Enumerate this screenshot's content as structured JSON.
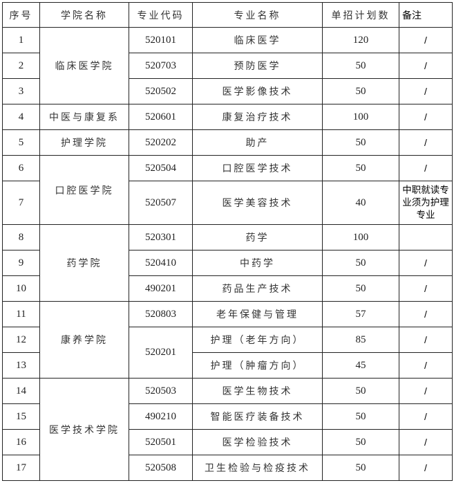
{
  "headers": {
    "seq": "序号",
    "college": "学院名称",
    "code": "专业代码",
    "major": "专业名称",
    "plan": "单招计划数",
    "remark": "备注"
  },
  "colleges": [
    "临床医学院",
    "中医与康复系",
    "护理学院",
    "口腔医学院",
    "药学院",
    "康养学院",
    "医学技术学院"
  ],
  "rows": [
    {
      "seq": "1",
      "code": "520101",
      "major": "临床医学",
      "plan": "120",
      "remark": "/"
    },
    {
      "seq": "2",
      "code": "520703",
      "major": "预防医学",
      "plan": "50",
      "remark": "/"
    },
    {
      "seq": "3",
      "code": "520502",
      "major": "医学影像技术",
      "plan": "50",
      "remark": "/"
    },
    {
      "seq": "4",
      "code": "520601",
      "major": "康复治疗技术",
      "plan": "100",
      "remark": "/"
    },
    {
      "seq": "5",
      "code": "520202",
      "major": "助产",
      "plan": "50",
      "remark": "/"
    },
    {
      "seq": "6",
      "code": "520504",
      "major": "口腔医学技术",
      "plan": "50",
      "remark": "/"
    },
    {
      "seq": "7",
      "code": "520507",
      "major": "医学美容技术",
      "plan": "40",
      "remark": "中职就读专业须为护理专业"
    },
    {
      "seq": "8",
      "code": "520301",
      "major": "药学",
      "plan": "100",
      "remark": ""
    },
    {
      "seq": "9",
      "code": "520410",
      "major": "中药学",
      "plan": "50",
      "remark": "/"
    },
    {
      "seq": "10",
      "code": "490201",
      "major": "药品生产技术",
      "plan": "50",
      "remark": "/"
    },
    {
      "seq": "11",
      "code": "520803",
      "major": "老年保健与管理",
      "plan": "57",
      "remark": "/"
    },
    {
      "seq": "12",
      "code": "520201",
      "major": "护理（老年方向）",
      "plan": "85",
      "remark": "/"
    },
    {
      "seq": "13",
      "code": "",
      "major": "护理（肿瘤方向）",
      "plan": "45",
      "remark": "/"
    },
    {
      "seq": "14",
      "code": "520503",
      "major": "医学生物技术",
      "plan": "50",
      "remark": "/"
    },
    {
      "seq": "15",
      "code": "490210",
      "major": "智能医疗装备技术",
      "plan": "50",
      "remark": "/"
    },
    {
      "seq": "16",
      "code": "520501",
      "major": "医学检验技术",
      "plan": "50",
      "remark": "/"
    },
    {
      "seq": "17",
      "code": "520508",
      "major": "卫生检验与检疫技术",
      "plan": "50",
      "remark": "/"
    }
  ]
}
